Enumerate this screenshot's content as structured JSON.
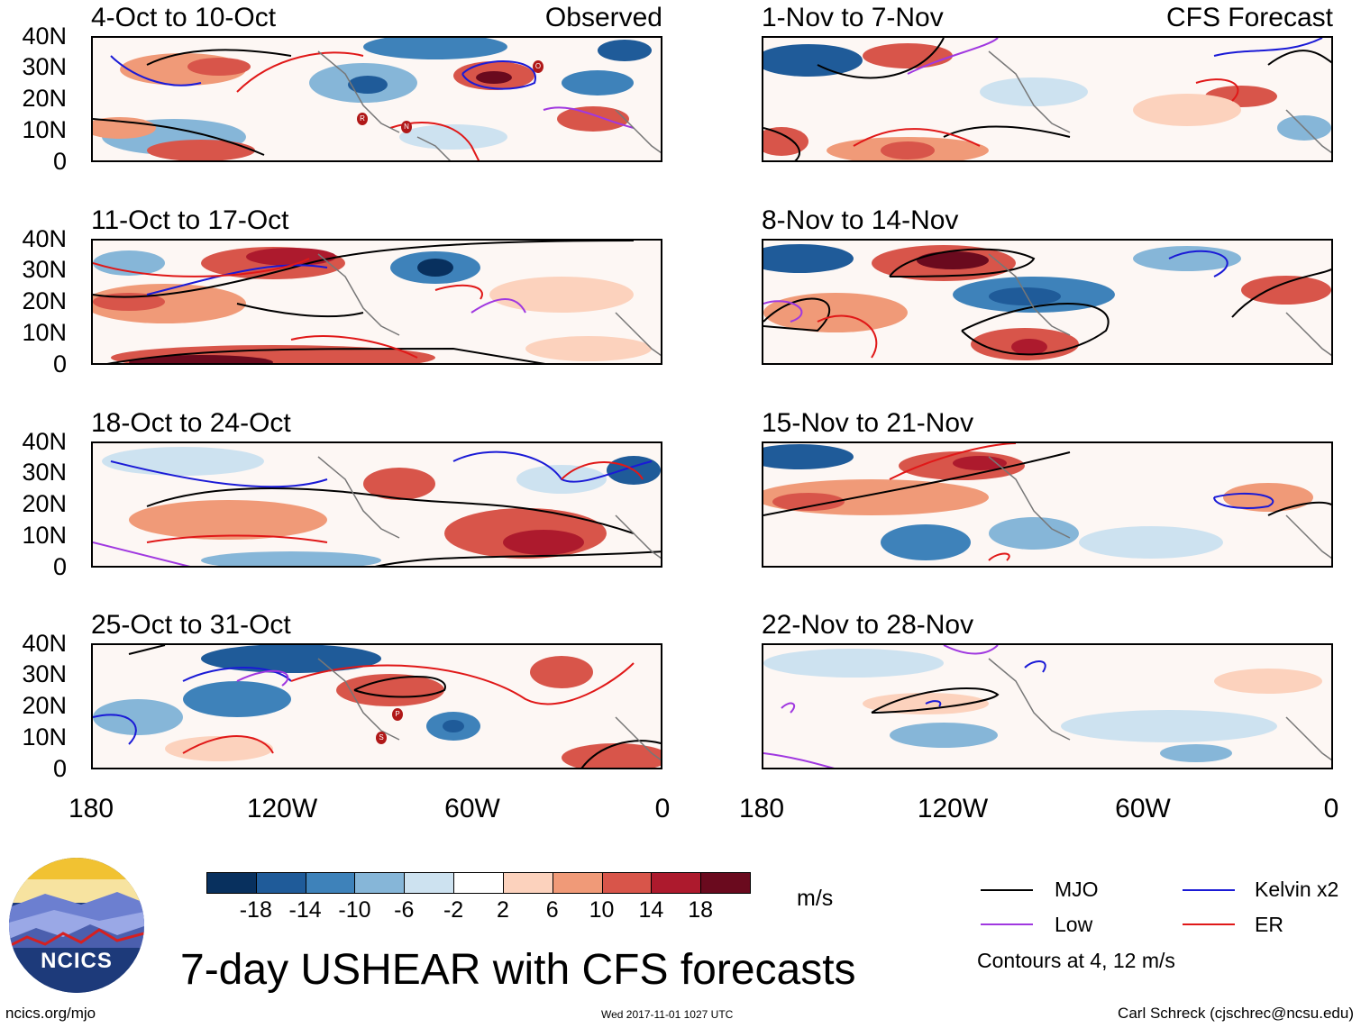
{
  "title": "7-day USHEAR with CFS forecasts",
  "panel_labels": {
    "observed": "Observed",
    "forecast": "CFS Forecast"
  },
  "panels": [
    {
      "id": "p1",
      "title": "4-Oct to 10-Oct",
      "kind": "observed"
    },
    {
      "id": "p2",
      "title": "11-Oct to 17-Oct",
      "kind": "observed"
    },
    {
      "id": "p3",
      "title": "18-Oct to 24-Oct",
      "kind": "observed"
    },
    {
      "id": "p4",
      "title": "25-Oct to 31-Oct",
      "kind": "observed"
    },
    {
      "id": "p5",
      "title": "1-Nov to 7-Nov",
      "kind": "forecast"
    },
    {
      "id": "p6",
      "title": "8-Nov to 14-Nov",
      "kind": "forecast"
    },
    {
      "id": "p7",
      "title": "15-Nov to 21-Nov",
      "kind": "forecast"
    },
    {
      "id": "p8",
      "title": "22-Nov to 28-Nov",
      "kind": "forecast"
    }
  ],
  "y_ticks": [
    "40N",
    "30N",
    "20N",
    "10N",
    "0"
  ],
  "x_ticks": [
    "180",
    "120W",
    "60W",
    "0"
  ],
  "colorbar": {
    "unit": "m/s",
    "labels": [
      "-18",
      "-14",
      "-10",
      "-6",
      "-2",
      "2",
      "6",
      "10",
      "14",
      "18"
    ],
    "colors": [
      "#08305e",
      "#1f5b99",
      "#3e82ba",
      "#86b6d8",
      "#cde2f0",
      "#ffffff",
      "#fcd2bd",
      "#f09a78",
      "#d8554a",
      "#ad1a2d",
      "#6a0a1e"
    ]
  },
  "legend": {
    "items": [
      {
        "label": "MJO",
        "color": "#000000"
      },
      {
        "label": "Kelvin x2",
        "color": "#1a1ad6"
      },
      {
        "label": "Low",
        "color": "#a038e0"
      },
      {
        "label": "ER",
        "color": "#e01818"
      }
    ],
    "note": "Contours at 4, 12 m/s"
  },
  "logo_text": "NCICS",
  "footer": {
    "left": "ncics.org/mjo",
    "center": "Wed 2017-11-01 1027 UTC",
    "right": "Carl Schreck (cjschrec@ncsu.edu)"
  },
  "storm_markers": [
    {
      "panel": "p1",
      "letter": "R"
    },
    {
      "panel": "p1",
      "letter": "N"
    },
    {
      "panel": "p1",
      "letter": "O"
    },
    {
      "panel": "p4",
      "letter": "P"
    },
    {
      "panel": "p4",
      "letter": "S"
    }
  ]
}
